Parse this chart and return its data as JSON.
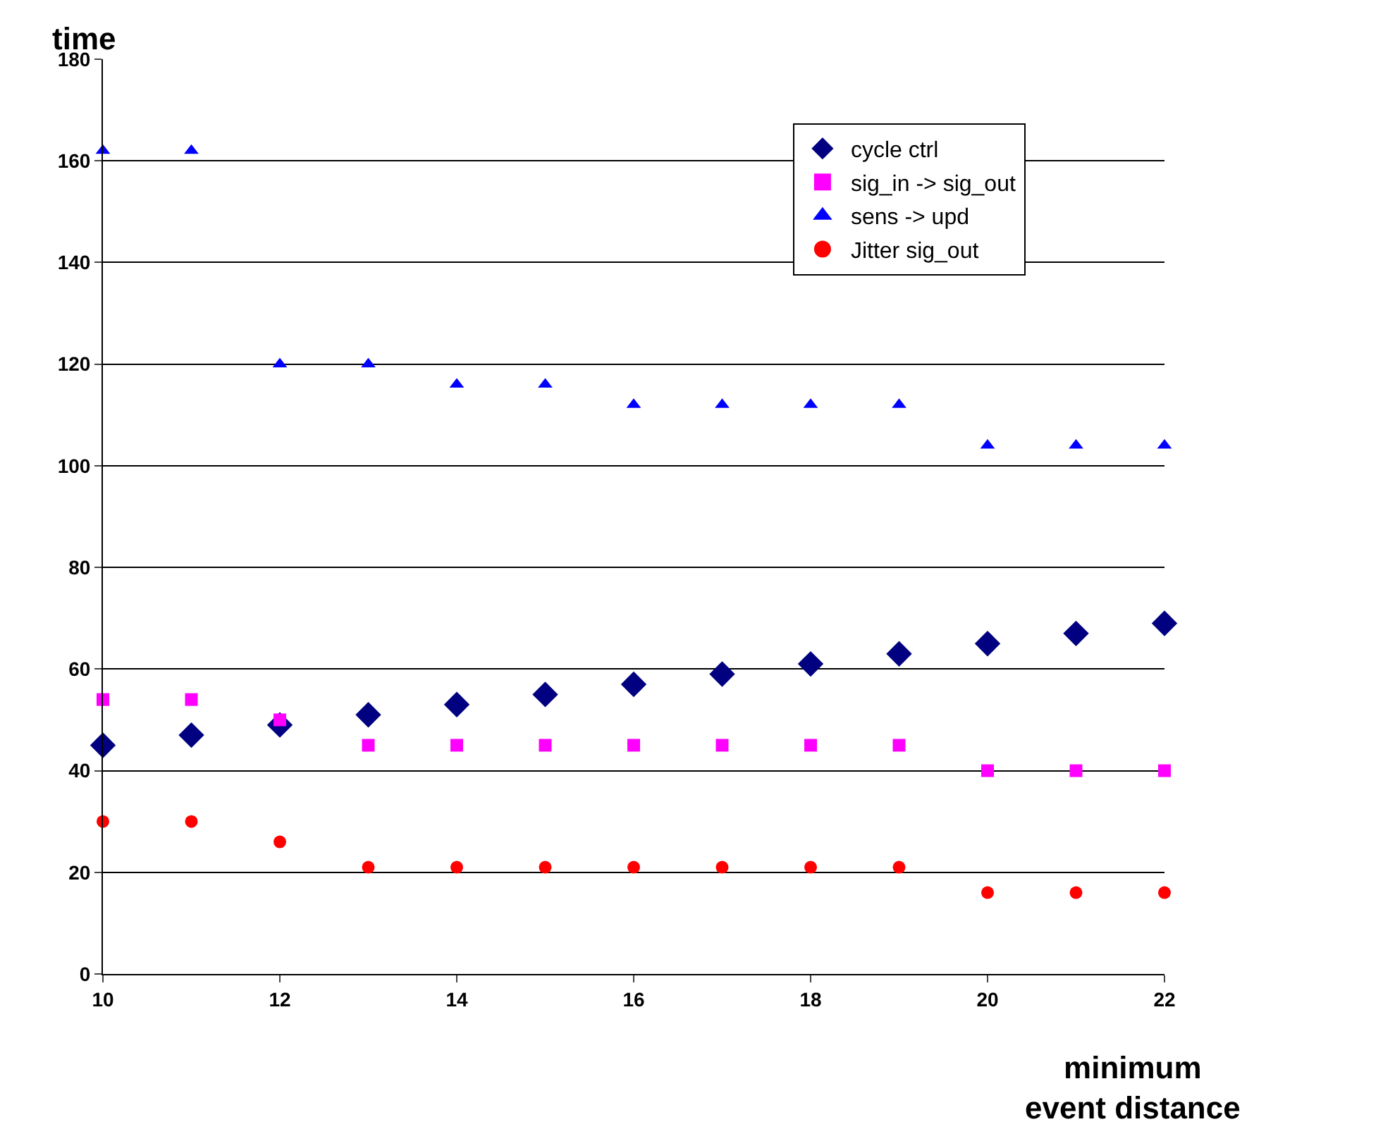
{
  "chart_data": {
    "type": "scatter",
    "ylabel": "time",
    "xlabel": "minimum\nevent distance",
    "x": [
      10,
      11,
      12,
      13,
      14,
      15,
      16,
      17,
      18,
      19,
      20,
      21,
      22
    ],
    "series": [
      {
        "name": "cycle ctrl",
        "color": "#000080",
        "marker": "diamond",
        "values": [
          45,
          47,
          49,
          51,
          53,
          55,
          57,
          59,
          61,
          63,
          65,
          67,
          69
        ]
      },
      {
        "name": "sig_in -> sig_out",
        "color": "#ff00ff",
        "marker": "square",
        "values": [
          54,
          54,
          50,
          45,
          45,
          45,
          45,
          45,
          45,
          45,
          40,
          40,
          40
        ]
      },
      {
        "name": "sens -> upd",
        "color": "#0000ff",
        "marker": "triangle",
        "values": [
          162,
          162,
          120,
          120,
          116,
          116,
          112,
          112,
          112,
          112,
          104,
          104,
          104
        ]
      },
      {
        "name": "Jitter sig_out",
        "color": "#ff0000",
        "marker": "circle",
        "values": [
          30,
          30,
          26,
          21,
          21,
          21,
          21,
          21,
          21,
          21,
          16,
          16,
          16
        ]
      }
    ],
    "xlim": [
      10,
      22
    ],
    "xticks": [
      10,
      12,
      14,
      16,
      18,
      20,
      22
    ],
    "ylim": [
      0,
      180
    ],
    "yticks": [
      0,
      20,
      40,
      60,
      80,
      100,
      120,
      140,
      160,
      180
    ],
    "grid": "y",
    "legend": "top right"
  }
}
